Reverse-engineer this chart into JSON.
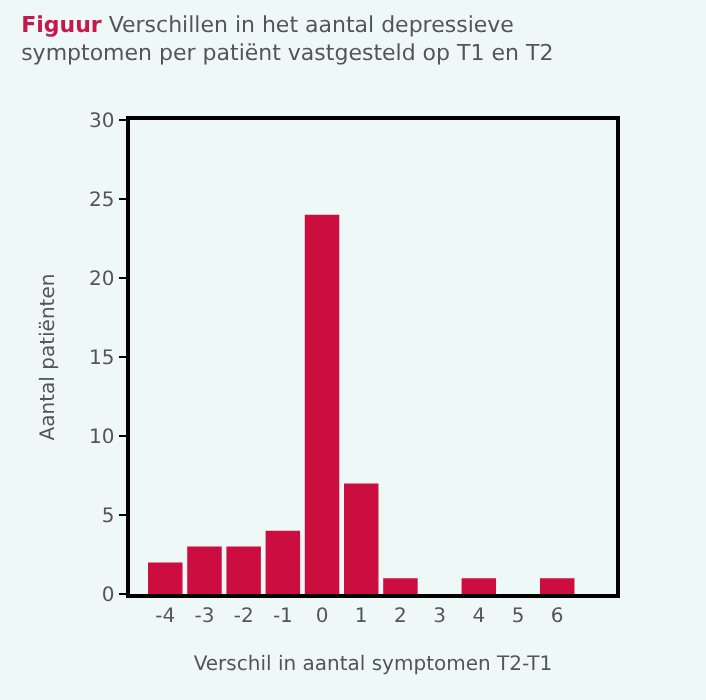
{
  "chart_data": {
    "type": "bar",
    "title": "Figuur Verschillen in het aantal depressieve symptomen per patiënt vastgesteld op T1 en T2",
    "xlabel": "Verschil in aantal symptomen T2-T1",
    "ylabel": "Aantal patiënten",
    "x": [
      -4,
      -3,
      -2,
      -1,
      0,
      1,
      2,
      3,
      4,
      5,
      6
    ],
    "values": [
      2,
      3,
      3,
      4,
      24,
      7,
      1,
      0,
      1,
      0,
      1
    ],
    "color": "#cc0d3f",
    "xlim": [
      -4.9,
      7.5
    ],
    "xticks": [
      -4,
      -3,
      -2,
      -1,
      0,
      1,
      2,
      3,
      4,
      5,
      6
    ],
    "ylim": [
      0,
      30
    ],
    "yticks": [
      0,
      5,
      10,
      15,
      20,
      25,
      30
    ]
  }
}
